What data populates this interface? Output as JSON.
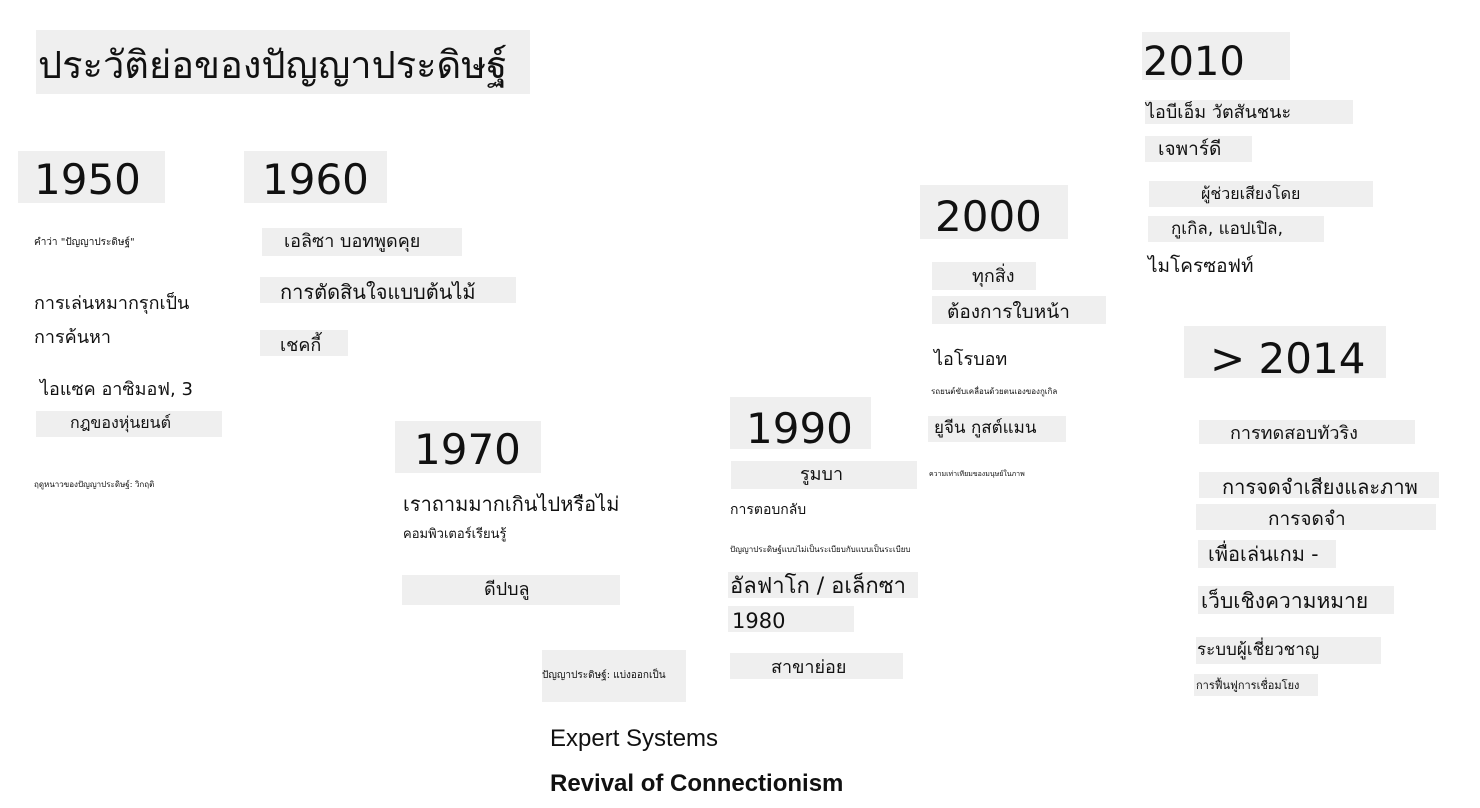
{
  "title": "ประวัติย่อของปัญญาประดิษฐ์",
  "years": {
    "y1950": "1950",
    "y1960": "1960",
    "y1970": "1970",
    "y1990": "1990",
    "y2000": "2000",
    "y2010": "2010",
    "y2014": "> 2014"
  },
  "era1950": {
    "term": "คำว่า \"ปัญญาประดิษฐ์\"",
    "chess_line1": "การเล่นหมากรุกเป็น",
    "chess_line2": "การค้นหา",
    "asimov_line1": "ไอแซค อาซิมอฟ, 3",
    "asimov_line2": "กฎของหุ่นยนต์",
    "winter": "ฤดูหนาวของปัญญาประดิษฐ์: วิกฤติ"
  },
  "era1960": {
    "eliza": "เอลิซา บอทพูดคุย",
    "decision_tree": "การตัดสินใจแบบต้นไม้",
    "shakey": "เชคกี้"
  },
  "era1970": {
    "question": "เราถามมากเกินไปหรือไม่",
    "learning": "คอมพิวเตอร์เรียนรู้",
    "deep_blue": "ดีปบลู",
    "split": "ปัญญาประดิษฐ์: แบ่งออกเป็น"
  },
  "era1990": {
    "roomba": "รูมบา",
    "feedback": "การตอบกลับ",
    "structured": "ปัญญาประดิษฐ์แบบไม่เป็นระเบียบกับแบบเป็นระเบียบ",
    "alphago": "อัลฟาโก / อเล็กซา",
    "y1980": "1980",
    "subfields": "สาขาย่อย"
  },
  "era2000": {
    "everything_line1": "ทุกสิ่ง",
    "everything_line2": "ต้องการใบหน้า",
    "irobot": "ไอโรบอท",
    "self_driving": "รถยนต์ขับเคลื่อนด้วยตนเองของกูเกิล",
    "goostman": "ยูจีน กูสต์แมน",
    "parity": "ความเท่าเทียมของมนุษย์ในภาพ"
  },
  "era2010": {
    "watson_line1": "ไอบีเอ็ม วัตสันชนะ",
    "watson_line2": "เจพาร์ดี",
    "assistant_line1": "ผู้ช่วยเสียงโดย",
    "assistant_line2": "กูเกิล, แอปเปิล,",
    "assistant_line3": "ไมโครซอฟท์"
  },
  "era2014": {
    "turing": "การทดสอบทัวริง",
    "recognition_line1": "การจดจำเสียงและภาพ",
    "recognition_line2": "การจดจำ",
    "games": "เพื่อเล่นเกม -",
    "semantic_web": "เว็บเชิงความหมาย",
    "expert": "ระบบผู้เชี่ยวชาญ",
    "revival": "การฟื้นฟูการเชื่อมโยง"
  },
  "footer": {
    "expert_systems": "Expert Systems",
    "revival": "Revival of Connectionism"
  }
}
